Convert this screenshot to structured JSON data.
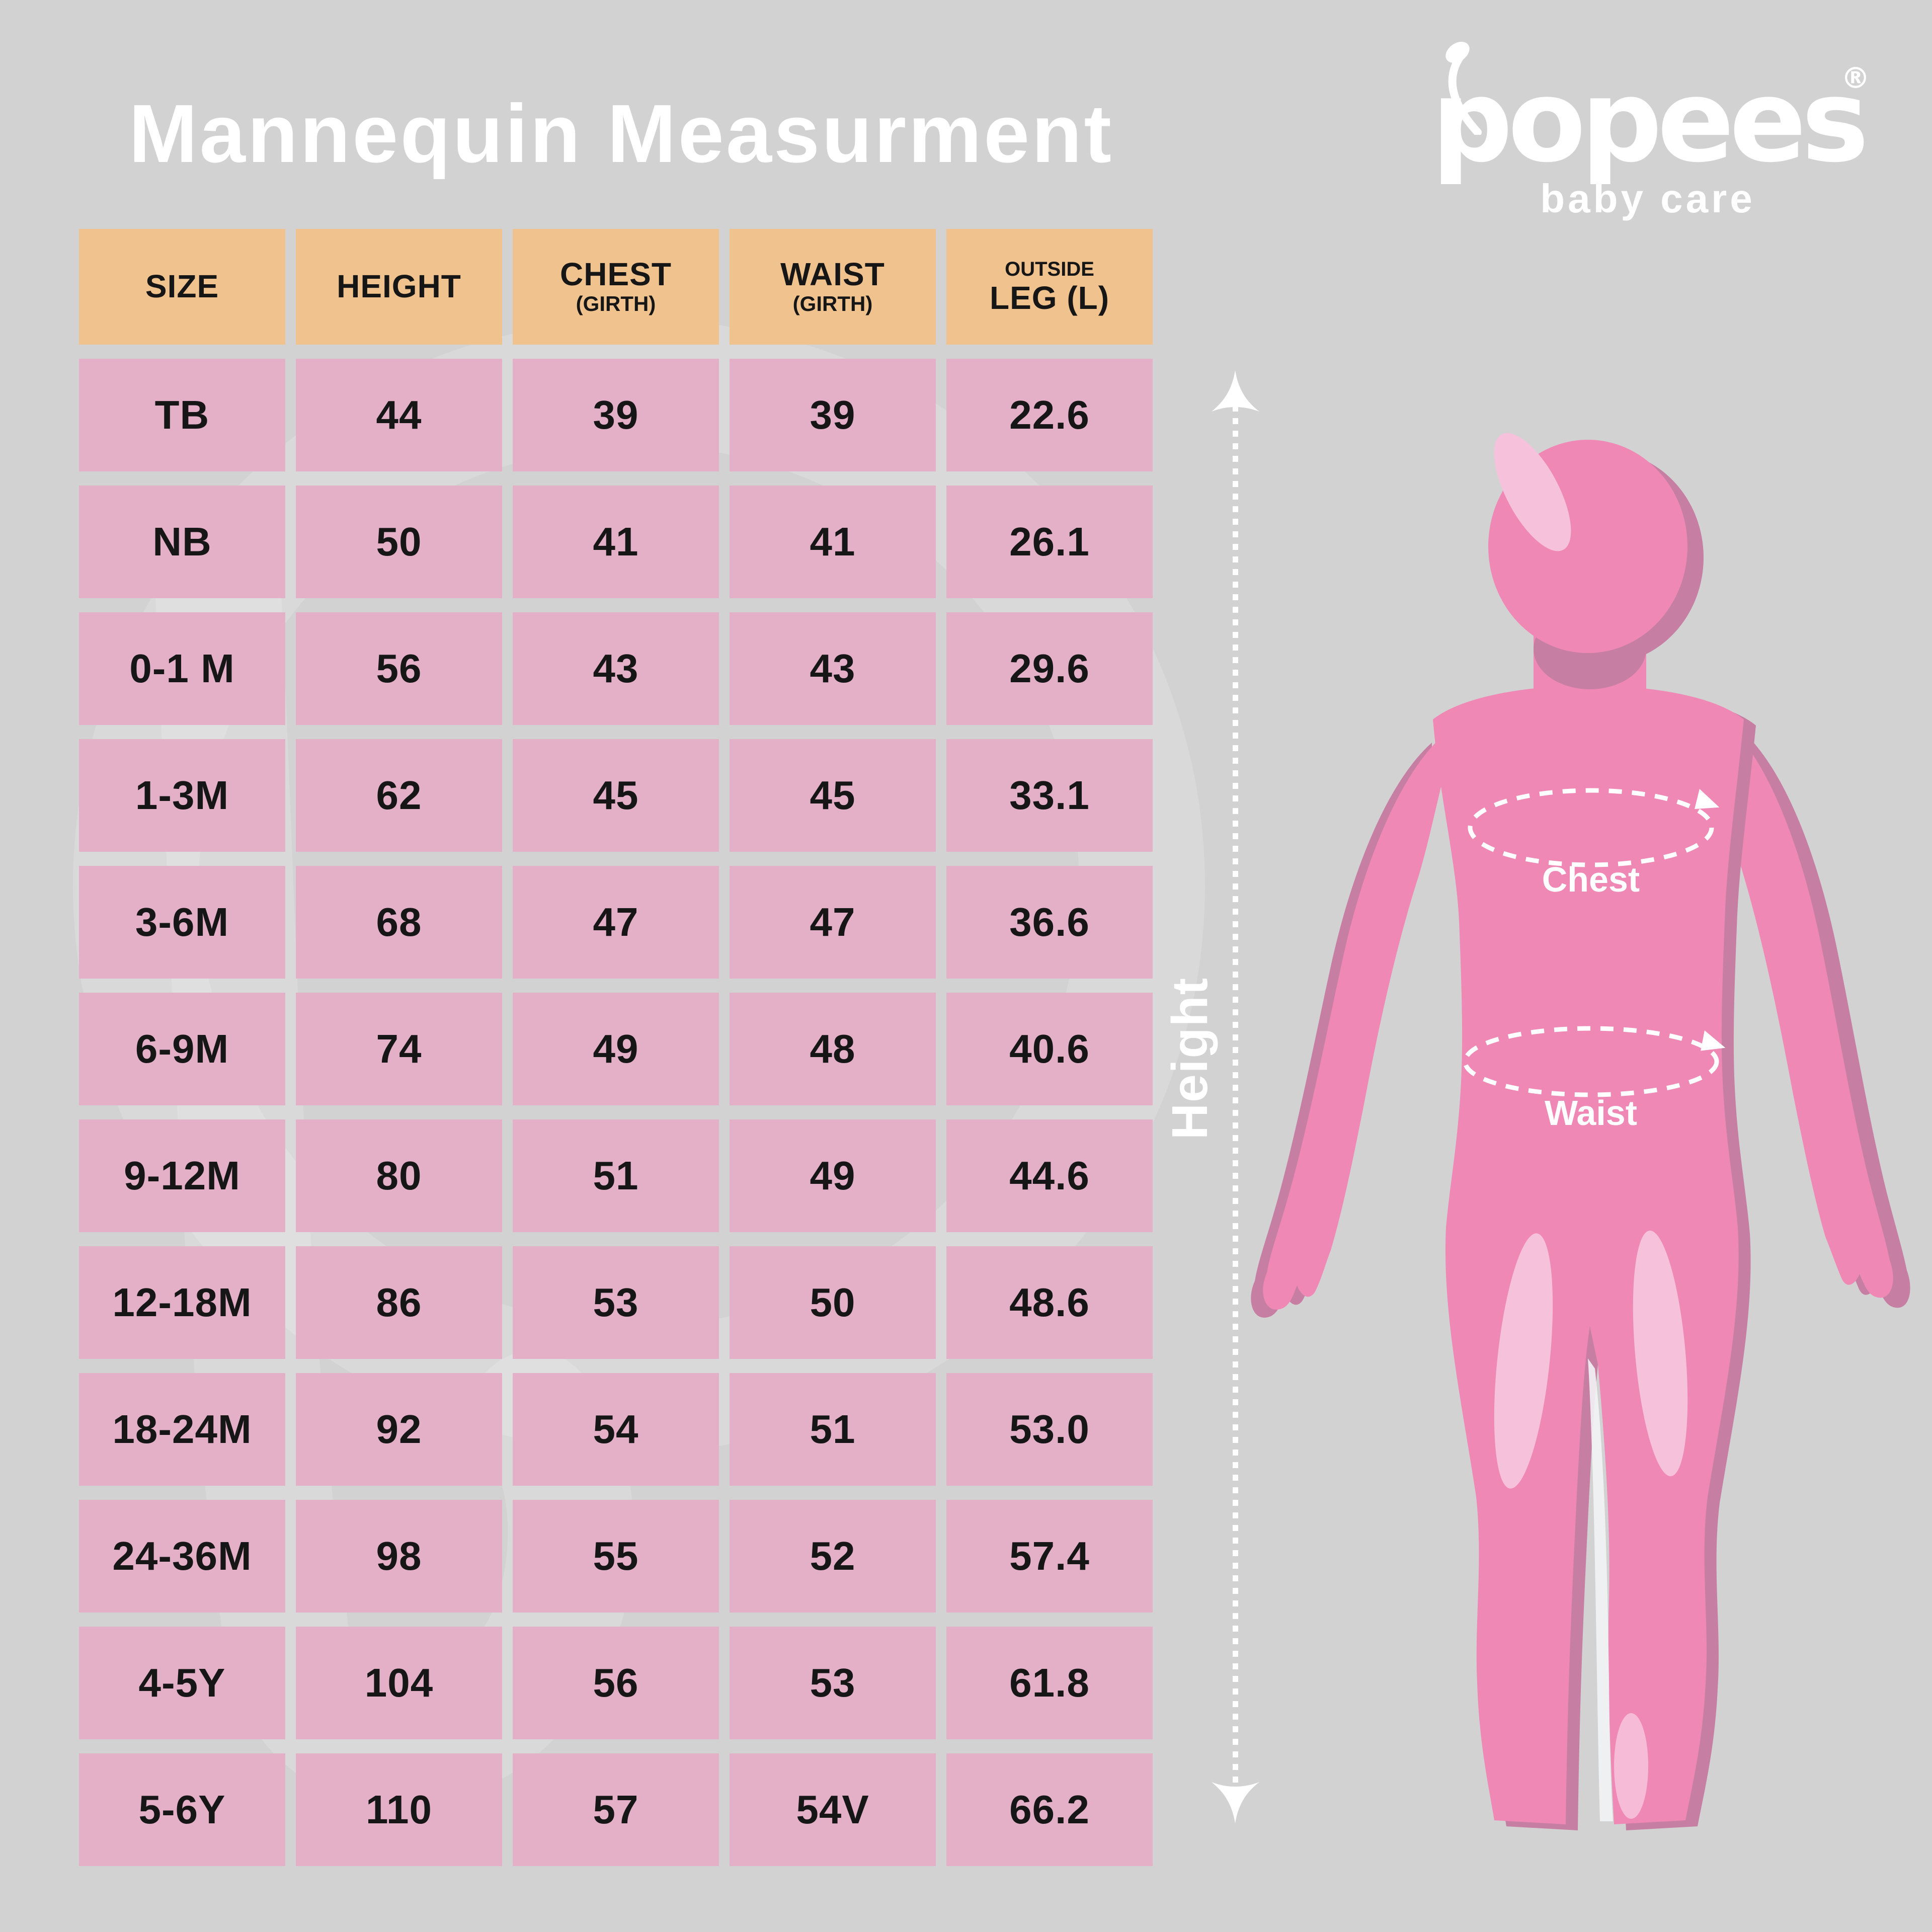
{
  "title": "Mannequin Measurment",
  "logo": {
    "brand": "popees",
    "registered": "®",
    "tagline": "baby care"
  },
  "table": {
    "headers": [
      {
        "top": "",
        "main": "SIZE",
        "sub": ""
      },
      {
        "top": "",
        "main": "HEIGHT",
        "sub": ""
      },
      {
        "top": "",
        "main": "CHEST",
        "sub": "(GIRTH)"
      },
      {
        "top": "",
        "main": "WAIST",
        "sub": "(GIRTH)"
      },
      {
        "top": "OUTSIDE",
        "main": "LEG (L)",
        "sub": ""
      }
    ],
    "rows": [
      [
        "TB",
        "44",
        "39",
        "39",
        "22.6"
      ],
      [
        "NB",
        "50",
        "41",
        "41",
        "26.1"
      ],
      [
        "0-1 M",
        "56",
        "43",
        "43",
        "29.6"
      ],
      [
        "1-3M",
        "62",
        "45",
        "45",
        "33.1"
      ],
      [
        "3-6M",
        "68",
        "47",
        "47",
        "36.6"
      ],
      [
        "6-9M",
        "74",
        "49",
        "48",
        "40.6"
      ],
      [
        "9-12M",
        "80",
        "51",
        "49",
        "44.6"
      ],
      [
        "12-18M",
        "86",
        "53",
        "50",
        "48.6"
      ],
      [
        "18-24M",
        "92",
        "54",
        "51",
        "53.0"
      ],
      [
        "24-36M",
        "98",
        "55",
        "52",
        "57.4"
      ],
      [
        "4-5Y",
        "104",
        "56",
        "53",
        "61.8"
      ],
      [
        "5-6Y",
        "110",
        "57",
        "54V",
        "66.2"
      ]
    ]
  },
  "figure": {
    "height_label": "Height",
    "chest_label": "Chest",
    "waist_label": "Waist"
  },
  "colors": {
    "background": "#d2d2d3",
    "header_cell": "#f0c28d",
    "data_cell": "#e4b0c8",
    "cell_text": "#161616",
    "white": "#ffffff",
    "mannequin_pink": "#f088b5",
    "mannequin_shadow": "#c67fa3",
    "mannequin_highlight": "#f6c1da"
  }
}
